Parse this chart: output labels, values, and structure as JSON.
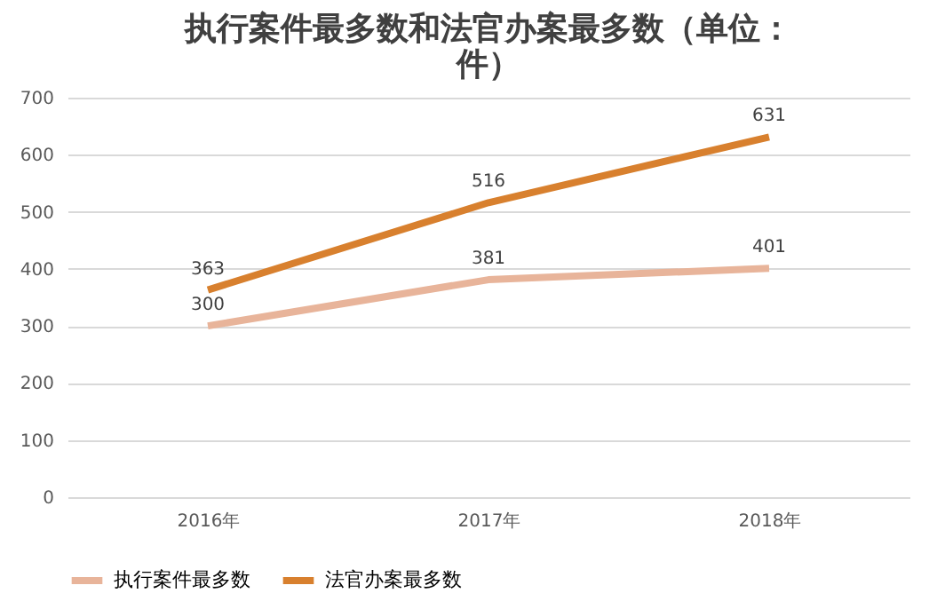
{
  "chart_data": {
    "type": "line",
    "title": "执行案件最多数和法官办案最多数（单位：件）",
    "categories": [
      "2016年",
      "2017年",
      "2018年"
    ],
    "series": [
      {
        "name": "执行案件最多数",
        "color": "#e8b49a",
        "values": [
          300,
          381,
          401
        ]
      },
      {
        "name": "法官办案最多数",
        "color": "#d8802e",
        "values": [
          363,
          516,
          631
        ]
      }
    ],
    "ylim": [
      0,
      700
    ],
    "yticks": [
      0,
      100,
      200,
      300,
      400,
      500,
      600,
      700
    ],
    "grid": "y",
    "legend": "bottom",
    "data_labels": true,
    "marker": "none",
    "line_style": "solid"
  }
}
